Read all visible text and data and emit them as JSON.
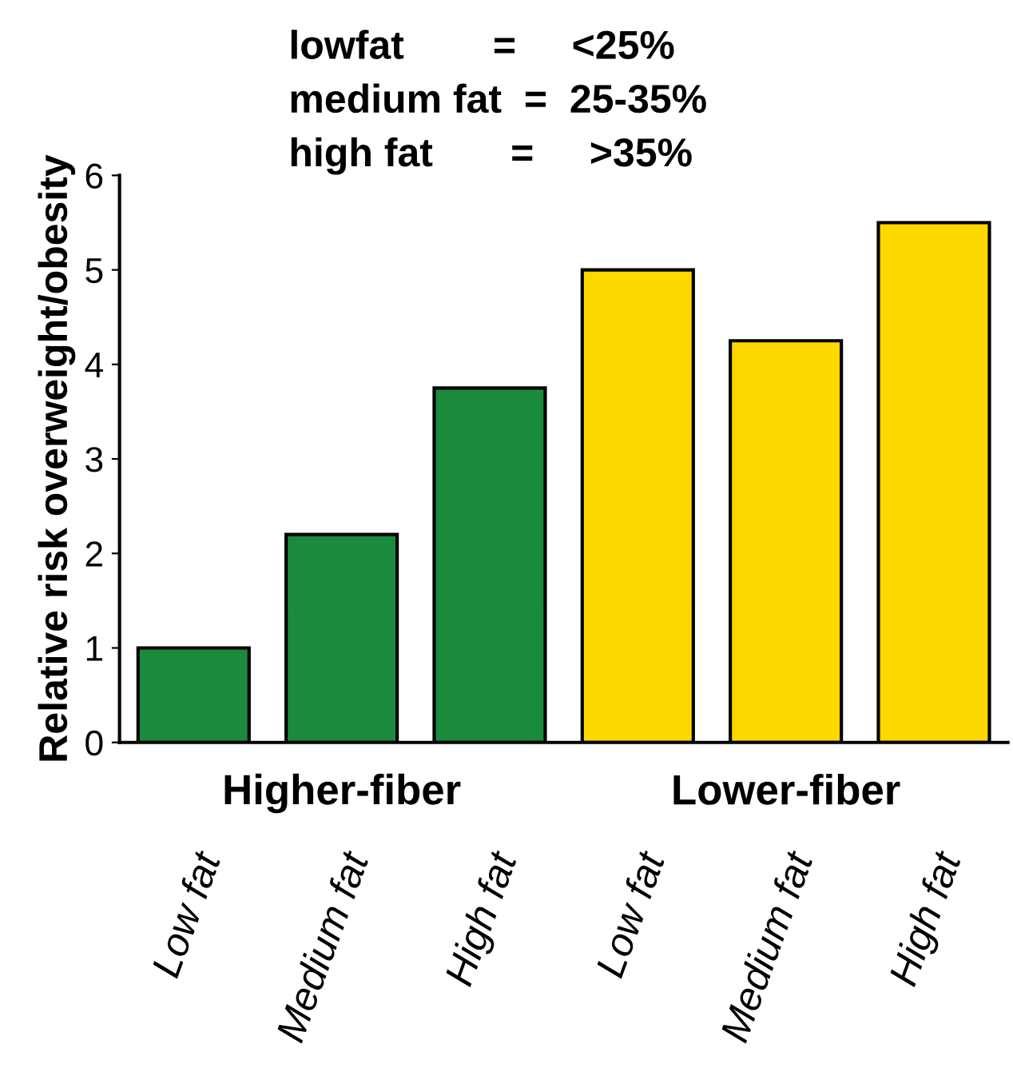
{
  "chart_data": {
    "type": "bar",
    "ylabel": "Relative risk overweight/obesity",
    "categories": [
      "Low fat",
      "Medium fat",
      "High fat",
      "Low fat",
      "Medium fat",
      "High fat"
    ],
    "values": [
      1.0,
      2.2,
      3.75,
      5.0,
      4.25,
      5.5
    ],
    "colors": [
      "#1a8a3c",
      "#1a8a3c",
      "#1a8a3c",
      "#ffd800",
      "#ffd800",
      "#ffd800"
    ],
    "ylim": [
      0,
      6
    ],
    "yticks": [
      0,
      1,
      2,
      3,
      4,
      5,
      6
    ],
    "grid": false,
    "annotations": [
      "lowfat        =     <25%",
      "medium fat  =  25-35%",
      "high fat       =     >35%",
      "Higher-fiber",
      "Lower-fiber"
    ]
  }
}
